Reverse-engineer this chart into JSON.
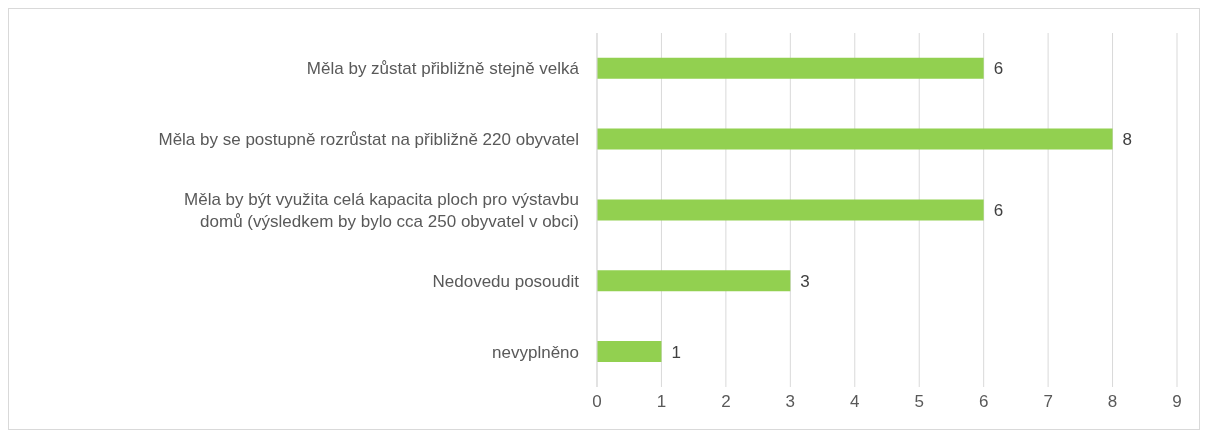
{
  "chart_data": {
    "type": "bar",
    "orientation": "horizontal",
    "categories": [
      "Měla by zůstat přibližně stejně velká",
      "Měla by se postupně rozrůstat na přibližně 220 obyvatel",
      "Měla by být využita celá kapacita ploch pro výstavbu domů (výsledkem by bylo cca 250 obyvatel v obci)",
      "Nedovedu posoudit",
      "nevyplněno"
    ],
    "values": [
      6,
      8,
      6,
      3,
      1
    ],
    "color": "#92d050",
    "xlim": [
      0,
      9
    ],
    "xticks": [
      0,
      1,
      2,
      3,
      4,
      5,
      6,
      7,
      8,
      9
    ],
    "grid": "x",
    "data_labels": true
  }
}
